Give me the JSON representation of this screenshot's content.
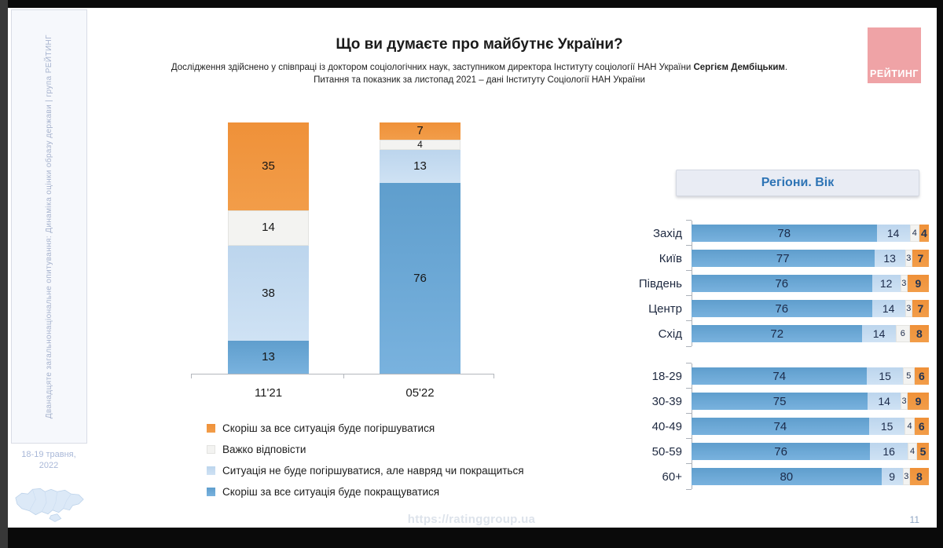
{
  "sidebar": {
    "vertical_text": "Дванадцяте загальнонаціональне опитування: Динаміка оцінки образу держави | група РЕЙТИНГ",
    "date_line1": "18-19 травня,",
    "date_line2": "2022"
  },
  "header": {
    "title": "Що ви думаєте про майбутнє України?",
    "subtitle_prefix": "Дослідження здійснено у співпраці із доктором соціологічних наук, заступником директора Інституту соціології НАН України ",
    "subtitle_bold": "Сергієм Дембіцьким",
    "subtitle_suffix": ".",
    "subtitle_line2": "Питання та показник за листопад 2021 – дані Інституту Соціології НАН України",
    "logo_text": "РЕЙТИНГ"
  },
  "colors": {
    "improve": "#64A3D1",
    "not_worse": "#C3DAEF",
    "hard": "#F2F2F2",
    "worsen": "#F0963E",
    "accent_blue": "#2E74B5",
    "logo_pink": "#EFA3A6"
  },
  "legend": {
    "items": [
      {
        "color_key": "worsen",
        "label": "Скоріш за все ситуація буде погіршуватися"
      },
      {
        "color_key": "hard",
        "label": "Важко відповісти"
      },
      {
        "color_key": "not_worse",
        "label": "Ситуація не буде погіршуватися, але навряд чи покращиться"
      },
      {
        "color_key": "improve",
        "label": "Скоріш за все ситуація буде покращуватися"
      }
    ]
  },
  "right_panel": {
    "title": "Регіони. Вік"
  },
  "footer": {
    "url": "https://ratinggroup.ua",
    "page_number": "11"
  },
  "chart_data": [
    {
      "type": "bar",
      "stacked": true,
      "orientation": "vertical",
      "categories": [
        "11'21",
        "05'22"
      ],
      "series": [
        {
          "name": "Скоріш за все ситуація буде покращуватися",
          "color_key": "improve",
          "values": [
            13,
            76
          ]
        },
        {
          "name": "Ситуація не буде погіршуватися, але навряд чи покращиться",
          "color_key": "not_worse",
          "values": [
            38,
            13
          ]
        },
        {
          "name": "Важко відповісти",
          "color_key": "hard",
          "values": [
            14,
            4
          ]
        },
        {
          "name": "Скоріш за все ситуація буде погіршуватися",
          "color_key": "worsen",
          "values": [
            35,
            7
          ]
        }
      ],
      "ylim": [
        0,
        100
      ],
      "legend_position": "below"
    },
    {
      "type": "bar",
      "stacked": true,
      "orientation": "horizontal",
      "title": "Регіони. Вік",
      "series_order": [
        "improve",
        "not_worse",
        "hard",
        "worsen"
      ],
      "series_names": [
        "Скоріш за все ситуація буде покращуватися",
        "Ситуація не буде погіршуватися, але навряд чи покращиться",
        "Важко відповісти",
        "Скоріш за все ситуація буде погіршуватися"
      ],
      "groups": [
        {
          "name": "regions",
          "rows": [
            {
              "label": "Захід",
              "values": [
                78,
                14,
                4,
                4
              ]
            },
            {
              "label": "Київ",
              "values": [
                77,
                13,
                3,
                7
              ]
            },
            {
              "label": "Південь",
              "values": [
                76,
                12,
                3,
                9
              ]
            },
            {
              "label": "Центр",
              "values": [
                76,
                14,
                3,
                7
              ]
            },
            {
              "label": "Схід",
              "values": [
                72,
                14,
                6,
                8
              ]
            }
          ]
        },
        {
          "name": "ages",
          "rows": [
            {
              "label": "18-29",
              "values": [
                74,
                15,
                5,
                6
              ]
            },
            {
              "label": "30-39",
              "values": [
                75,
                14,
                3,
                9
              ]
            },
            {
              "label": "40-49",
              "values": [
                74,
                15,
                4,
                6
              ]
            },
            {
              "label": "50-59",
              "values": [
                76,
                16,
                4,
                5
              ]
            },
            {
              "label": "60+",
              "values": [
                80,
                9,
                3,
                8
              ]
            }
          ]
        }
      ],
      "xlim": [
        0,
        100
      ]
    }
  ]
}
